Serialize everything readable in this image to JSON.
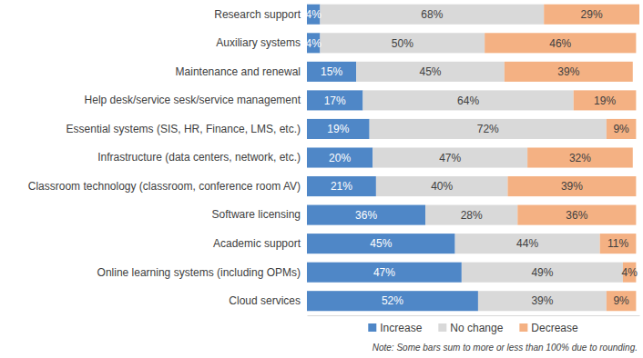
{
  "chart_data": {
    "type": "bar",
    "orientation": "horizontal",
    "stacked": true,
    "data_labels": true,
    "tick_labels": "y",
    "legend": "bottom",
    "grid": false,
    "categories": [
      "Research support",
      "Auxiliary systems",
      "Maintenance and renewal",
      "Help desk/service sesk/service management",
      "Essential systems (SIS, HR, Finance, LMS, etc.)",
      "Infrastructure (data centers, network, etc.)",
      "Classroom technology (classroom, conference room AV)",
      "Software licensing",
      "Academic support",
      "Online learning systems (including OPMs)",
      "Cloud services"
    ],
    "xlim": [
      0,
      101
    ],
    "series": [
      {
        "name": "Increase",
        "color": "#4f87c7",
        "values": [
          4,
          4,
          15,
          17,
          19,
          20,
          21,
          36,
          45,
          47,
          52
        ],
        "value_labels": [
          "4%",
          "4%",
          "15%",
          "17%",
          "19%",
          "20%",
          "21%",
          "36%",
          "45%",
          "47%",
          "52%"
        ]
      },
      {
        "name": "No change",
        "color": "#d9d9d9",
        "values": [
          68,
          50,
          45,
          64,
          72,
          47,
          40,
          28,
          44,
          49,
          39
        ],
        "value_labels": [
          "68%",
          "50%",
          "45%",
          "64%",
          "72%",
          "47%",
          "40%",
          "28%",
          "44%",
          "49%",
          "39%"
        ]
      },
      {
        "name": "Decrease",
        "color": "#f4b183",
        "values": [
          29,
          46,
          39,
          19,
          9,
          32,
          39,
          36,
          11,
          4,
          9
        ],
        "value_labels": [
          "29%",
          "46%",
          "39%",
          "19%",
          "9%",
          "32%",
          "39%",
          "36%",
          "11%",
          "4%",
          "9%"
        ]
      }
    ],
    "annotations": [
      "Note: Some bars sum to more or less than 100% due to rounding."
    ]
  }
}
